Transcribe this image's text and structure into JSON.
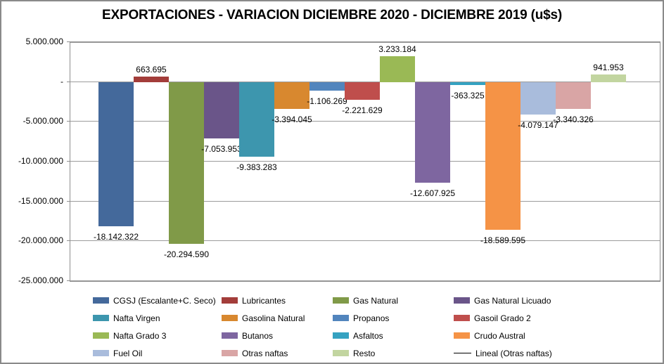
{
  "title": "EXPORTACIONES - VARIACION DICIEMBRE 2020 - DICIEMBRE 2019 (u$s)",
  "chart_data": {
    "type": "bar",
    "title": "EXPORTACIONES - VARIACION DICIEMBRE 2020 - DICIEMBRE 2019 (u$s)",
    "ylim": [
      -25000000,
      5000000
    ],
    "ytick_step": 5000000,
    "grid": true,
    "legend_position": "bottom",
    "yticks": [
      {
        "value": 5000000,
        "label": "5.000.000"
      },
      {
        "value": 0,
        "label": "-"
      },
      {
        "value": -5000000,
        "label": "-5.000.000"
      },
      {
        "value": -10000000,
        "label": "-10.000.000"
      },
      {
        "value": -15000000,
        "label": "-15.000.000"
      },
      {
        "value": -20000000,
        "label": "-20.000.000"
      },
      {
        "value": -25000000,
        "label": "-25.000.000"
      }
    ],
    "series": [
      {
        "name": "CGSJ (Escalante+C. Seco)",
        "value": -18142322,
        "data_label": "-18.142.322",
        "color": "#44699B"
      },
      {
        "name": "Lubricantes",
        "value": 663695,
        "data_label": "663.695",
        "color": "#A33D3A"
      },
      {
        "name": "Gas Natural",
        "value": -20294590,
        "data_label": "-20.294.590",
        "color": "#809A48"
      },
      {
        "name": "Gas Natural  Licuado",
        "value": -7053953,
        "data_label": "-7.053.953",
        "color": "#6A5589"
      },
      {
        "name": "Nafta Virgen",
        "value": -9383283,
        "data_label": "-9.383.283",
        "color": "#3D96AE"
      },
      {
        "name": "Gasolina Natural",
        "value": -3394045,
        "data_label": "-3.394.045",
        "color": "#D8882F"
      },
      {
        "name": "Propanos",
        "value": -1106269,
        "data_label": "-1.106.269",
        "color": "#5285BD"
      },
      {
        "name": "Gasoil Grado  2",
        "value": -2221629,
        "data_label": "-2.221.629",
        "color": "#BF4E4C"
      },
      {
        "name": "Nafta Grado 3",
        "value": 3233184,
        "data_label": "3.233.184",
        "color": "#9AB955"
      },
      {
        "name": "Butanos",
        "value": -12607925,
        "data_label": "-12.607.925",
        "color": "#7E66A0"
      },
      {
        "name": "Asfaltos",
        "value": -363325,
        "data_label": "-363.325",
        "color": "#35A2C1"
      },
      {
        "name": "Crudo Austral",
        "value": -18589595,
        "data_label": "-18.589.595",
        "color": "#F59346"
      },
      {
        "name": "Fuel Oil",
        "value": -4079147,
        "data_label": "-4.079.147",
        "color": "#A9BCDC"
      },
      {
        "name": "Otras naftas",
        "value": -3340326,
        "data_label": "-3.340.326",
        "color": "#D9A5A5"
      },
      {
        "name": "Resto",
        "value": 941953,
        "data_label": "941.953",
        "color": "#C2D5A0"
      }
    ],
    "trendline": {
      "name": "Lineal (Otras naftas)",
      "color": "#000000"
    }
  }
}
